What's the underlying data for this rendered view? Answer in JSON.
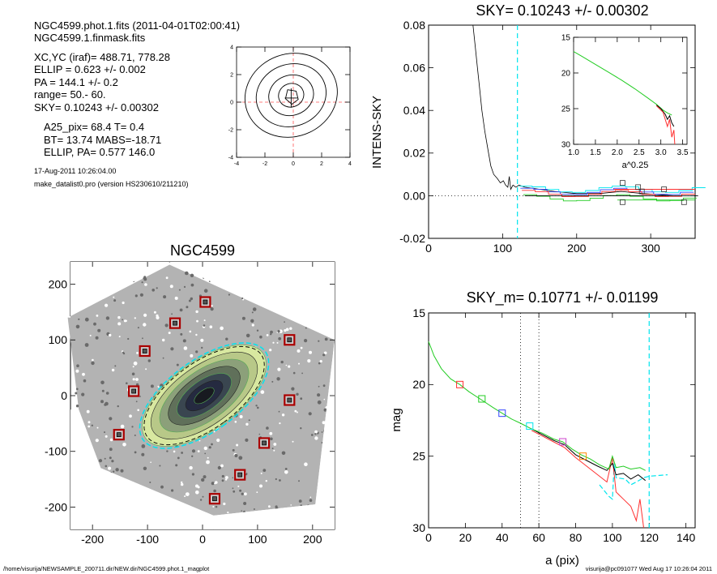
{
  "header": {
    "lines": [
      "NGC4599.phot.1.fits  (2011-04-01T02:00:41)",
      "NGC4599.1.finmask.fits",
      "XC,YC (iraf)=   488.71, 778.28",
      "ELLIP = 0.623 +/- 0.002",
      "PA    = 144.1 +/-   0.2",
      "range=   50.-   60.",
      "SKY= 0.10243 +/- 0.00302",
      "A25_pix= 68.4   T= 0.4",
      "BT=  13.74   MABS=-18.71",
      "ELLIP, PA= 0.577   146.0"
    ],
    "date": "17-Aug-2011 10:26:04.00",
    "program": "make_datalist0.pro (version HS230610/211210)"
  },
  "footer": {
    "left": "/home/visurija/NEWSAMPLE_200711.dir/NEW.dir/NGC4599.phot.1_magplot",
    "right": "visurija@pc091077  Wed Aug 17 10:26:04 2011"
  },
  "colors": {
    "cyan": "#00e5ee",
    "red": "#ff3030",
    "green": "#22cc22",
    "black": "#000000",
    "blue": "#3344ff",
    "magenta": "#cc44cc",
    "orange": "#ff8800",
    "darkred": "#aa0000",
    "grid": "#ff5555"
  },
  "chart_data": [
    {
      "id": "contour",
      "type": "contour",
      "x_ticks": [
        "-4",
        "-2",
        "0",
        "2",
        "4"
      ],
      "y_ticks": [
        "-4",
        "-2",
        "0",
        "2",
        "4"
      ],
      "xlim": [
        -4,
        4
      ],
      "ylim": [
        -4,
        4
      ]
    },
    {
      "id": "sky",
      "type": "line",
      "title": "SKY= 0.10243 +/- 0.00302",
      "ylabel": "INTENS-SKY",
      "xlim": [
        0,
        360
      ],
      "ylim": [
        -0.02,
        0.08
      ],
      "x_ticks": [
        "0",
        "100",
        "200",
        "300"
      ],
      "y_ticks": [
        "-0.02",
        "0.00",
        "0.02",
        "0.04",
        "0.06",
        "0.08"
      ],
      "vline_x": 120,
      "profile_black": [
        [
          60,
          0.08
        ],
        [
          63,
          0.07
        ],
        [
          66,
          0.06
        ],
        [
          69,
          0.05
        ],
        [
          72,
          0.04
        ],
        [
          76,
          0.03
        ],
        [
          80,
          0.022
        ],
        [
          84,
          0.014
        ],
        [
          88,
          0.01
        ],
        [
          93,
          0.008
        ],
        [
          97,
          0.006
        ],
        [
          101,
          0.007
        ],
        [
          104,
          0.005
        ],
        [
          107,
          0.004
        ],
        [
          109,
          0.009
        ],
        [
          111,
          0.003
        ],
        [
          114,
          0.005
        ],
        [
          118,
          0.004
        ],
        [
          122,
          0.005
        ],
        [
          130,
          0.004
        ],
        [
          150,
          0.003
        ],
        [
          170,
          0.002
        ],
        [
          200,
          0.001
        ],
        [
          230,
          0.001
        ],
        [
          260,
          0.002
        ],
        [
          290,
          0.001
        ],
        [
          330,
          0.0
        ]
      ],
      "squares": [
        [
          262,
          0.006
        ],
        [
          262,
          -0.003
        ],
        [
          283,
          0.004
        ],
        [
          288,
          0.002
        ],
        [
          318,
          0.003
        ],
        [
          345,
          -0.003
        ]
      ],
      "inset": {
        "xlabel": "a^0.25",
        "xlim": [
          1.0,
          3.6
        ],
        "ylim": [
          15,
          30
        ],
        "x_ticks": [
          "1.0",
          "1.5",
          "2.0",
          "2.5",
          "3.0",
          "3.5"
        ],
        "y_ticks": [
          "15",
          "20",
          "25",
          "30"
        ],
        "green": [
          [
            1.0,
            17.0
          ],
          [
            1.2,
            17.7
          ],
          [
            1.5,
            18.8
          ],
          [
            1.8,
            19.9
          ],
          [
            2.1,
            21.0
          ],
          [
            2.4,
            22.2
          ],
          [
            2.7,
            23.5
          ],
          [
            2.9,
            24.4
          ],
          [
            3.05,
            25.2
          ],
          [
            3.15,
            25.6
          ],
          [
            3.25,
            25.9
          ]
        ],
        "black": [
          [
            2.9,
            24.5
          ],
          [
            3.0,
            25.0
          ],
          [
            3.1,
            25.8
          ],
          [
            3.15,
            26.5
          ],
          [
            3.2,
            26.0
          ],
          [
            3.25,
            27.0
          ],
          [
            3.3,
            27.5
          ]
        ],
        "red": [
          [
            2.9,
            24.6
          ],
          [
            3.05,
            25.5
          ],
          [
            3.15,
            27.5
          ],
          [
            3.2,
            26.5
          ],
          [
            3.25,
            29.0
          ],
          [
            3.3,
            28.0
          ],
          [
            3.32,
            30.0
          ]
        ]
      }
    },
    {
      "id": "image",
      "type": "scatter",
      "title": "NGC4599",
      "xlim": [
        -240,
        240
      ],
      "ylim": [
        -240,
        240
      ],
      "x_ticks": [
        "-200",
        "-100",
        "0",
        "100",
        "200"
      ],
      "y_ticks": [
        "-200",
        "-100",
        "0",
        "100",
        "200"
      ],
      "markers": [
        [
          5,
          168
        ],
        [
          -50,
          130
        ],
        [
          -105,
          80
        ],
        [
          158,
          100
        ],
        [
          -125,
          8
        ],
        [
          158,
          -8
        ],
        [
          -152,
          -70
        ],
        [
          112,
          -85
        ],
        [
          68,
          -142
        ],
        [
          22,
          -185
        ]
      ],
      "ellipse_pa_deg": 144.1,
      "ellipse_semimajor": 130,
      "ellipse_semiminor": 62
    },
    {
      "id": "mag",
      "type": "line",
      "title": "SKY_m=  0.10771 +/- 0.01199",
      "xlabel": "a (pix)",
      "ylabel": "mag",
      "xlim": [
        0,
        145
      ],
      "ylim": [
        30,
        15
      ],
      "x_ticks": [
        "0",
        "20",
        "40",
        "60",
        "80",
        "100",
        "120",
        "140"
      ],
      "y_ticks": [
        "15",
        "20",
        "25",
        "30"
      ],
      "dotted_x": [
        50,
        60
      ],
      "dashed_x": [
        120
      ],
      "green": [
        [
          0,
          17.0
        ],
        [
          3,
          18.0
        ],
        [
          7,
          18.9
        ],
        [
          12,
          19.6
        ],
        [
          17,
          20.0
        ],
        [
          22,
          20.5
        ],
        [
          28,
          21.0
        ],
        [
          35,
          21.6
        ],
        [
          40,
          22.0
        ],
        [
          45,
          22.4
        ],
        [
          50,
          22.7
        ],
        [
          56,
          23.1
        ],
        [
          62,
          23.4
        ],
        [
          68,
          23.8
        ],
        [
          73,
          24.0
        ],
        [
          78,
          24.5
        ],
        [
          83,
          24.9
        ],
        [
          88,
          25.2
        ],
        [
          93,
          25.6
        ],
        [
          98,
          25.9
        ],
        [
          100,
          25.0
        ],
        [
          102,
          25.8
        ],
        [
          106,
          25.7
        ],
        [
          110,
          25.9
        ],
        [
          115,
          25.8
        ],
        [
          118,
          26.0
        ]
      ],
      "black": [
        [
          56,
          23.1
        ],
        [
          62,
          23.5
        ],
        [
          68,
          23.9
        ],
        [
          74,
          24.2
        ],
        [
          80,
          24.9
        ],
        [
          86,
          25.3
        ],
        [
          92,
          25.7
        ],
        [
          97,
          26.0
        ],
        [
          100,
          25.5
        ],
        [
          102,
          26.3
        ],
        [
          106,
          26.2
        ],
        [
          110,
          26.6
        ],
        [
          114,
          26.3
        ],
        [
          118,
          26.7
        ]
      ],
      "red": [
        [
          56,
          23.2
        ],
        [
          62,
          23.6
        ],
        [
          68,
          24.0
        ],
        [
          74,
          24.4
        ],
        [
          80,
          25.1
        ],
        [
          86,
          25.7
        ],
        [
          92,
          26.3
        ],
        [
          97,
          26.8
        ],
        [
          100,
          25.1
        ],
        [
          102,
          27.5
        ],
        [
          106,
          28.0
        ],
        [
          110,
          28.5
        ],
        [
          113,
          29.5
        ],
        [
          115,
          28.0
        ],
        [
          116,
          29.0
        ],
        [
          117,
          30.0
        ]
      ],
      "cyan": [
        [
          93,
          27.0
        ],
        [
          98,
          27.8
        ],
        [
          100,
          28.0
        ],
        [
          101,
          25.5
        ],
        [
          102,
          26.5
        ],
        [
          107,
          26.6
        ],
        [
          110,
          27.0
        ],
        [
          113,
          26.8
        ],
        [
          117,
          26.5
        ],
        [
          120,
          26.4
        ],
        [
          130,
          26.3
        ]
      ],
      "squares": [
        {
          "x": 17,
          "y": 20.0,
          "c": "red"
        },
        {
          "x": 29,
          "y": 21.0,
          "c": "green"
        },
        {
          "x": 40,
          "y": 22.0,
          "c": "blue"
        },
        {
          "x": 55,
          "y": 22.9,
          "c": "cyan"
        },
        {
          "x": 73,
          "y": 24.0,
          "c": "magenta"
        },
        {
          "x": 84,
          "y": 25.0,
          "c": "orange"
        }
      ]
    }
  ]
}
